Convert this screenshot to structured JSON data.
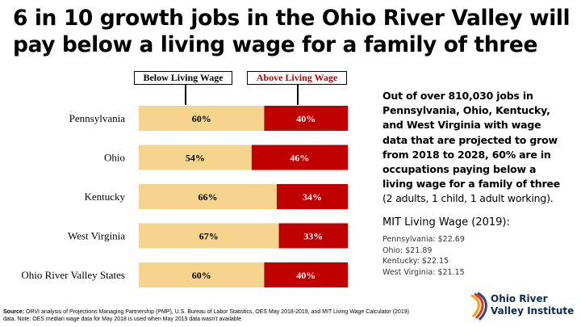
{
  "title_lines": [
    "6 in 10 growth jobs in the Ohio River Valley will",
    "pay below a living wage for a family of three"
  ],
  "legend": {
    "below": "Below Living Wage",
    "above": "Above Living Wage"
  },
  "colors": {
    "below": "#f5d58e",
    "above": "#c00000",
    "above_legend_text": "#c00000"
  },
  "chart_data": {
    "type": "bar",
    "stacked": true,
    "orientation": "horizontal",
    "categories": [
      "Pennsylvania",
      "Ohio",
      "Kentucky",
      "West Virginia",
      "Ohio River Valley States"
    ],
    "series": [
      {
        "name": "Below Living Wage",
        "values": [
          60,
          54,
          66,
          67,
          60
        ],
        "labels": [
          "60%",
          "54%",
          "66%",
          "67%",
          "60%"
        ]
      },
      {
        "name": "Above Living Wage",
        "values": [
          40,
          46,
          34,
          33,
          40
        ],
        "labels": [
          "40%",
          "46%",
          "34%",
          "33%",
          "40%"
        ]
      }
    ],
    "xlim": [
      0,
      100
    ],
    "grid": false
  },
  "side_text": {
    "bold_lines": [
      "Out of over 810,030 jobs in",
      "Pennsylvania, Ohio, Kentucky,",
      "and West Virginia with wage",
      "data that are projected  to grow",
      "from 2018 to 2028, 60% are in",
      "occupations paying below a",
      "living wage for a family of three"
    ],
    "normal_line": "(2 adults, 1 child, 1 adult working)."
  },
  "mit": {
    "title": "MIT Living Wage (2019):",
    "items": [
      "Pennsylvania: $22.69",
      "Ohio: $21.89",
      "Kentucky: $22.15",
      "West Virginia: $21.15"
    ]
  },
  "source": {
    "label": "Source:",
    "text": " ORVI analysis of Projections Managing Partnership (PMP), U.S. Bureau of Labor Statistics, OES May 2018-2019, and MIT Living Wage Calculator (2019) data. Note: OES median wage data for May 2018 is used when May 2019 data wasn't available"
  },
  "logo": {
    "name": "ohio-river-valley-institute-logo",
    "line1": "Ohio River",
    "line2": "Valley Institute"
  }
}
